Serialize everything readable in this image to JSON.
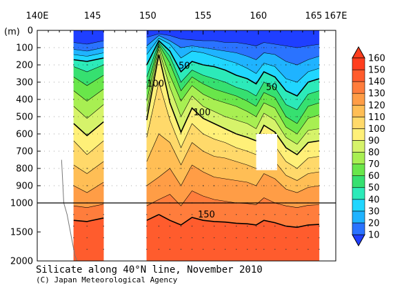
{
  "chart_data": {
    "type": "heatmap",
    "title": "Silicate along 40°N line, November 2010",
    "credit": "(C) Japan Meteorological Agency",
    "x_axis": {
      "range": [
        140,
        167
      ],
      "ticks": [
        {
          "value": 140,
          "label": "140E"
        },
        {
          "value": 145,
          "label": "145"
        },
        {
          "value": 150,
          "label": "150"
        },
        {
          "value": 155,
          "label": "155"
        },
        {
          "value": 160,
          "label": "160"
        },
        {
          "value": 165,
          "label": "165"
        },
        {
          "value": 167,
          "label": "167E"
        }
      ]
    },
    "y_axis": {
      "unit": "(m)",
      "upper_ticks": [
        "0",
        "100",
        "200",
        "300",
        "400",
        "500",
        "600",
        "700",
        "800",
        "900",
        "1000"
      ],
      "lower_ticks": [
        "1500",
        "2000"
      ]
    },
    "colorbar": {
      "levels": [
        10,
        20,
        30,
        40,
        50,
        60,
        70,
        80,
        90,
        100,
        110,
        120,
        130,
        140,
        150,
        160
      ],
      "colors": [
        "#1f3fff",
        "#2a73ff",
        "#1fb3ff",
        "#20d6ff",
        "#2ceab9",
        "#36e070",
        "#69e64a",
        "#a8ef52",
        "#d6f36a",
        "#fff078",
        "#ffd96a",
        "#ffbe55",
        "#ff9d46",
        "#ff7d3c",
        "#ff5c2d",
        "#ff3e1e"
      ]
    },
    "contour_labels": [
      "50",
      "100",
      "50",
      "100",
      "150"
    ],
    "sections": [
      {
        "name": "143.3E-146E",
        "columns": [
          {
            "lon": 143.3,
            "iso": {
              "20": 70,
              "30": 110,
              "40": 140,
              "50": 170,
              "60": 210,
              "70": 270,
              "80": 350,
              "90": 440,
              "100": 540,
              "110": 640,
              "120": 780,
              "130": 900,
              "140": 1050,
              "150": 1300
            }
          },
          {
            "lon": 144.5,
            "iso": {
              "20": 80,
              "30": 120,
              "40": 150,
              "50": 180,
              "60": 240,
              "70": 320,
              "80": 410,
              "90": 510,
              "100": 610,
              "110": 720,
              "120": 830,
              "130": 940,
              "140": 1080,
              "150": 1320
            }
          },
          {
            "lon": 146.0,
            "iso": {
              "20": 60,
              "30": 100,
              "40": 130,
              "50": 160,
              "60": 200,
              "70": 260,
              "80": 340,
              "90": 430,
              "100": 530,
              "110": 640,
              "120": 760,
              "130": 880,
              "140": 1020,
              "150": 1260
            }
          }
        ]
      },
      {
        "name": "149.9E-165.5E",
        "columns": [
          {
            "lon": 149.9,
            "iso": {
              "20": 40,
              "30": 90,
              "40": 140,
              "50": 200,
              "60": 270,
              "70": 340,
              "80": 410,
              "90": 470,
              "100": 520,
              "110": 620,
              "120": 760,
              "130": 900,
              "140": 1050,
              "150": 1300
            }
          },
          {
            "lon": 151.0,
            "iso": {
              "20": 20,
              "30": 30,
              "40": 45,
              "50": 60,
              "60": 70,
              "70": 80,
              "80": 90,
              "90": 110,
              "100": 140,
              "110": 300,
              "120": 600,
              "130": 850,
              "140": 980,
              "150": 1200
            }
          },
          {
            "lon": 152.0,
            "iso": {
              "20": 30,
              "30": 60,
              "40": 80,
              "50": 120,
              "60": 150,
              "70": 190,
              "80": 260,
              "90": 330,
              "100": 420,
              "110": 520,
              "120": 650,
              "130": 800,
              "140": 950,
              "150": 1300
            }
          },
          {
            "lon": 153.0,
            "iso": {
              "20": 50,
              "30": 100,
              "40": 160,
              "50": 240,
              "60": 300,
              "70": 350,
              "80": 410,
              "90": 500,
              "100": 590,
              "110": 680,
              "120": 780,
              "130": 900,
              "140": 1050,
              "150": 1380
            }
          },
          {
            "lon": 154.0,
            "iso": {
              "20": 55,
              "30": 90,
              "40": 120,
              "50": 180,
              "60": 230,
              "70": 270,
              "80": 320,
              "90": 380,
              "100": 450,
              "110": 540,
              "120": 650,
              "130": 780,
              "140": 930,
              "150": 1250
            }
          },
          {
            "lon": 155.0,
            "iso": {
              "20": 60,
              "30": 100,
              "40": 130,
              "50": 200,
              "60": 260,
              "70": 310,
              "80": 370,
              "90": 440,
              "100": 510,
              "110": 600,
              "120": 700,
              "130": 820,
              "140": 960,
              "150": 1300
            }
          },
          {
            "lon": 156.0,
            "iso": {
              "20": 60,
              "30": 110,
              "40": 150,
              "50": 210,
              "60": 280,
              "70": 340,
              "80": 400,
              "90": 470,
              "100": 540,
              "110": 630,
              "120": 730,
              "130": 850,
              "140": 980,
              "150": 1320
            }
          },
          {
            "lon": 157.0,
            "iso": {
              "20": 70,
              "30": 120,
              "40": 170,
              "50": 230,
              "60": 300,
              "70": 360,
              "80": 420,
              "90": 500,
              "100": 570,
              "110": 650,
              "120": 740,
              "130": 860,
              "140": 990,
              "150": 1330
            }
          },
          {
            "lon": 158.0,
            "iso": {
              "20": 70,
              "30": 130,
              "40": 190,
              "50": 260,
              "60": 330,
              "70": 380,
              "80": 440,
              "90": 520,
              "100": 600,
              "110": 680,
              "120": 760,
              "130": 870,
              "140": 1000,
              "150": 1350
            }
          },
          {
            "lon": 159.0,
            "iso": {
              "20": 80,
              "30": 150,
              "40": 220,
              "50": 280,
              "60": 350,
              "70": 410,
              "80": 470,
              "90": 540,
              "100": 620,
              "110": 700,
              "120": 780,
              "130": 880,
              "140": 1010,
              "150": 1360
            }
          },
          {
            "lon": 159.8,
            "iso": {
              "20": 90,
              "30": 170,
              "40": 250,
              "50": 310,
              "60": 380,
              "70": 440,
              "80": 500,
              "90": 570,
              "100": 640,
              "110": 720,
              "120": 800,
              "130": 900,
              "140": 1030,
              "150": 1380
            }
          },
          {
            "lon": 160.5,
            "iso": {
              "20": 70,
              "30": 130,
              "40": 190,
              "50": 240,
              "60": 300,
              "70": 360,
              "80": 420,
              "90": 480,
              "100": 550,
              "110": 630,
              "120": 720,
              "130": 830,
              "140": 970,
              "150": 1300
            }
          },
          {
            "lon": 161.5,
            "iso": {
              "20": 80,
              "30": 140,
              "40": 210,
              "50": 270,
              "60": 330,
              "70": 390,
              "80": 450,
              "90": 520,
              "100": 590,
              "110": 670,
              "120": 760,
              "130": 860,
              "140": 1000,
              "150": 1340
            }
          },
          {
            "lon": 162.5,
            "iso": {
              "20": 90,
              "30": 180,
              "40": 280,
              "50": 350,
              "60": 430,
              "70": 500,
              "80": 560,
              "90": 620,
              "100": 680,
              "110": 760,
              "120": 840,
              "130": 920,
              "140": 1050,
              "150": 1400
            }
          },
          {
            "lon": 163.5,
            "iso": {
              "20": 100,
              "30": 200,
              "40": 300,
              "50": 380,
              "60": 460,
              "70": 540,
              "80": 600,
              "90": 660,
              "100": 720,
              "110": 800,
              "120": 870,
              "130": 940,
              "140": 1080,
              "150": 1420
            }
          },
          {
            "lon": 164.5,
            "iso": {
              "20": 90,
              "30": 170,
              "40": 240,
              "50": 300,
              "60": 370,
              "70": 440,
              "80": 510,
              "90": 580,
              "100": 650,
              "110": 740,
              "120": 830,
              "130": 910,
              "140": 1040,
              "150": 1380
            }
          },
          {
            "lon": 165.5,
            "iso": {
              "20": 80,
              "30": 150,
              "40": 220,
              "50": 280,
              "60": 350,
              "70": 420,
              "80": 490,
              "90": 570,
              "100": 640,
              "110": 730,
              "120": 820,
              "130": 900,
              "140": 1030,
              "150": 1370
            }
          }
        ]
      }
    ],
    "missing_boxes": [
      {
        "lon": [
          159.8,
          161.7
        ],
        "depth": [
          600,
          810
        ]
      }
    ]
  }
}
